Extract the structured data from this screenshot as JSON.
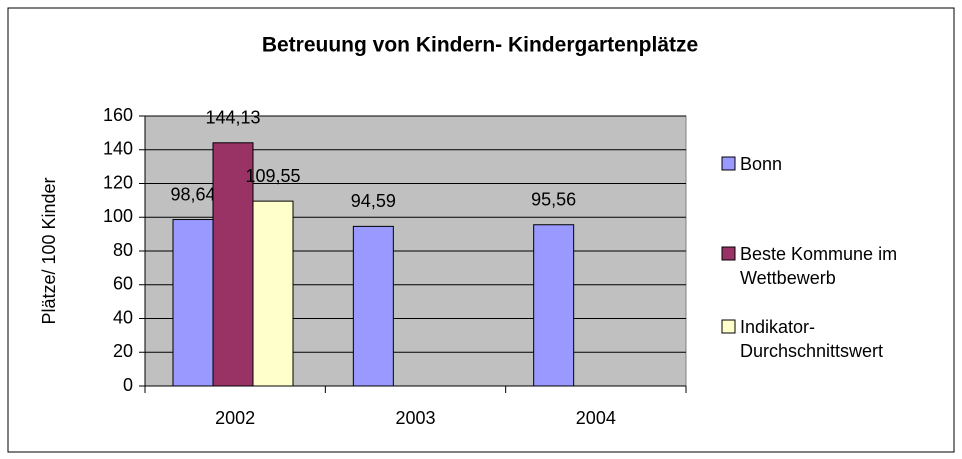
{
  "chart_data": {
    "type": "bar",
    "title": "Betreuung von Kindern- Kindergartenplätze",
    "y_label": "Plätze/ 100 Kinder",
    "categories": [
      "2002",
      "2003",
      "2004"
    ],
    "series": [
      {
        "name": "Bonn",
        "color": "#9999ff",
        "values": [
          98.64,
          94.59,
          95.56
        ],
        "value_labels": [
          "98,64",
          "94,59",
          "95,56"
        ]
      },
      {
        "name": "Beste Kommune im Wettbewerb",
        "color": "#993366",
        "values": [
          144.13,
          null,
          null
        ],
        "value_labels": [
          "144,13",
          null,
          null
        ]
      },
      {
        "name": "Indikator-Durchschnittswert",
        "color": "#ffffcc",
        "values": [
          109.55,
          null,
          null
        ],
        "value_labels": [
          "109,55",
          null,
          null
        ]
      }
    ],
    "ylim": [
      0,
      160
    ],
    "yticks": [
      0,
      20,
      40,
      60,
      80,
      100,
      120,
      140,
      160
    ],
    "grid": true,
    "legend": "right",
    "plot_background": "#c0c0c0"
  }
}
